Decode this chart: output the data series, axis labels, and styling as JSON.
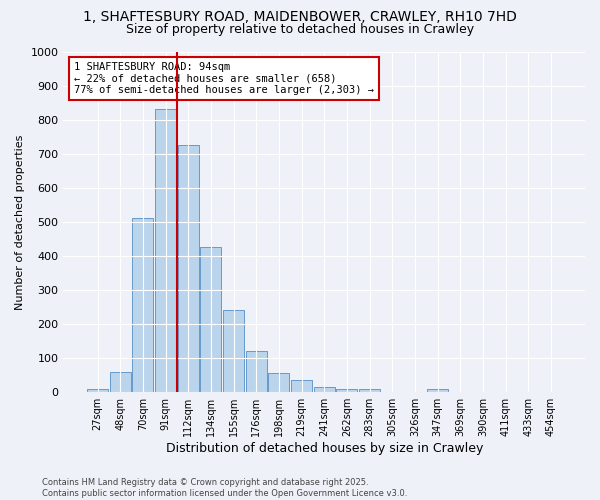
{
  "title_line1": "1, SHAFTESBURY ROAD, MAIDENBOWER, CRAWLEY, RH10 7HD",
  "title_line2": "Size of property relative to detached houses in Crawley",
  "xlabel": "Distribution of detached houses by size in Crawley",
  "ylabel": "Number of detached properties",
  "categories": [
    "27sqm",
    "48sqm",
    "70sqm",
    "91sqm",
    "112sqm",
    "134sqm",
    "155sqm",
    "176sqm",
    "198sqm",
    "219sqm",
    "241sqm",
    "262sqm",
    "283sqm",
    "305sqm",
    "326sqm",
    "347sqm",
    "369sqm",
    "390sqm",
    "411sqm",
    "433sqm",
    "454sqm"
  ],
  "values": [
    10,
    60,
    510,
    830,
    725,
    425,
    240,
    120,
    55,
    35,
    15,
    10,
    10,
    0,
    0,
    10,
    0,
    0,
    0,
    0,
    0
  ],
  "bar_color": "#bad4ec",
  "bar_edge_color": "#6699cc",
  "vline_color": "#cc0000",
  "annotation_text": "1 SHAFTESBURY ROAD: 94sqm\n← 22% of detached houses are smaller (658)\n77% of semi-detached houses are larger (2,303) →",
  "annotation_box_color": "#ffffff",
  "annotation_box_edge": "#cc0000",
  "ylim": [
    0,
    1000
  ],
  "yticks": [
    0,
    100,
    200,
    300,
    400,
    500,
    600,
    700,
    800,
    900,
    1000
  ],
  "background_color": "#eef2f8",
  "grid_color": "#ffffff",
  "footer_text": "Contains HM Land Registry data © Crown copyright and database right 2025.\nContains public sector information licensed under the Open Government Licence v3.0.",
  "title_fontsize": 10,
  "subtitle_fontsize": 9,
  "vline_bar_index": 3
}
